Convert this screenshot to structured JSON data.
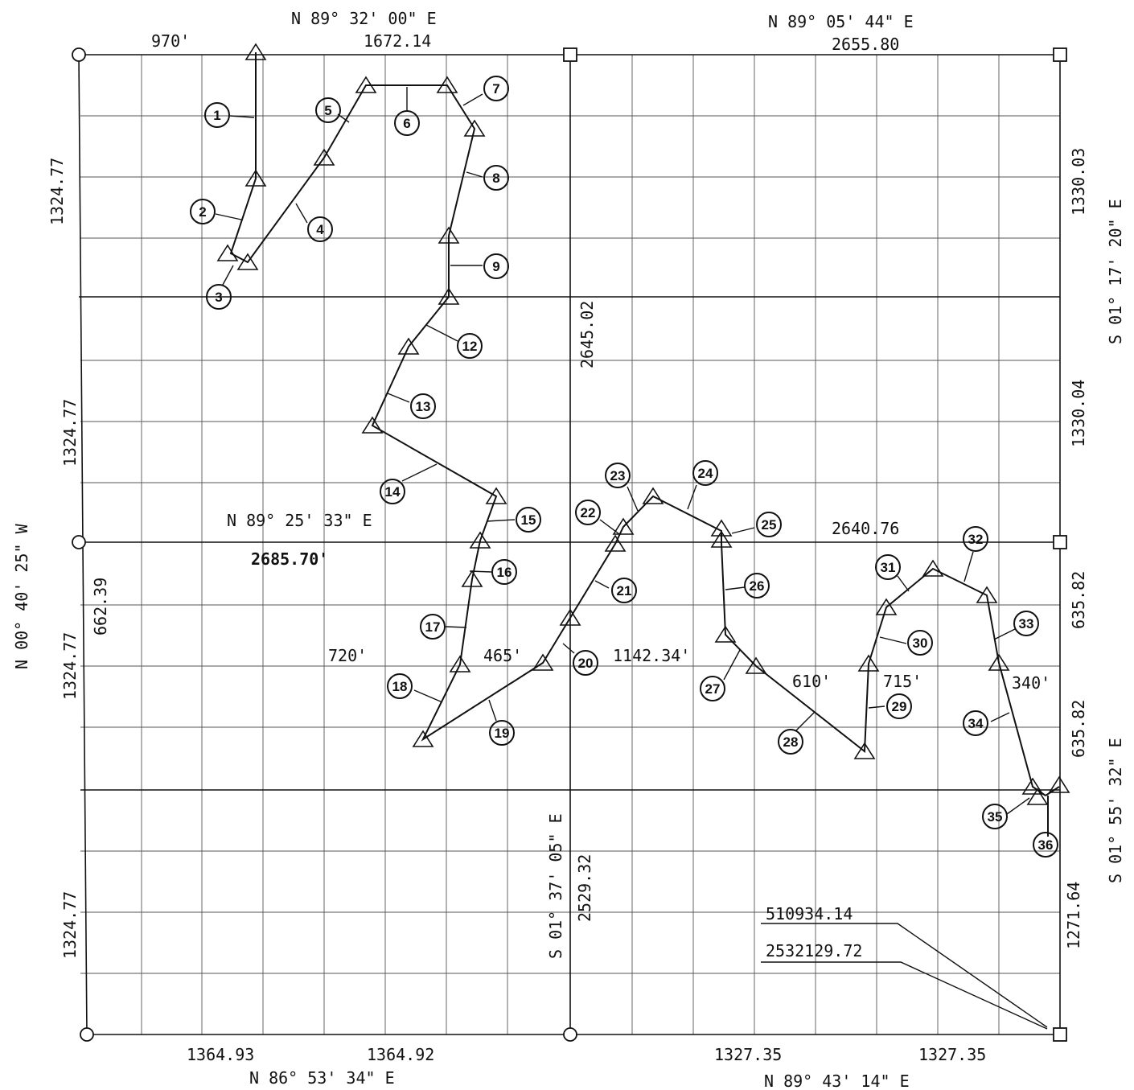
{
  "top_labels": {
    "bearing_left": "N 89° 32' 00\" E",
    "bearing_right": "N 89° 05' 44\" E",
    "dist_970": "970'",
    "dist_1672": "1672.14",
    "dist_2655": "2655.80"
  },
  "bottom_labels": {
    "dist_a": "1364.93",
    "dist_b": "1364.92",
    "dist_c": "1327.35",
    "dist_d": "1327.35",
    "bearing_left": "N 86° 53' 34\" E",
    "bearing_right": "N 89° 43' 14\" E"
  },
  "left_labels": {
    "bearing": "N 00° 40' 25\" W",
    "seg1": "1324.77",
    "seg2": "1324.77",
    "seg3": "1324.77",
    "seg4": "1324.77",
    "dist_662": "662.39"
  },
  "right_labels": {
    "seg1": "1330.03",
    "seg2": "1330.04",
    "seg3": "635.82",
    "seg4": "635.82",
    "seg5": "1271.64",
    "bearing_upper": "S 01° 17' 20\" E",
    "bearing_lower": "S 01° 55' 32\" E"
  },
  "center_labels": {
    "mid_top": "2645.02",
    "mid_bottom": "2529.32",
    "mid_bearing": "S 01° 37' 05\" E",
    "mid_row_bearing": "N 89° 25' 33\" E",
    "mid_row_dist": "2685.70'",
    "mid_row_right": "2640.76",
    "d720": "720'",
    "d465": "465'",
    "d1142": "1142.34'",
    "d610": "610'",
    "d715": "715'",
    "d340": "340'"
  },
  "coordinates": {
    "northing": "510934.14",
    "easting": "2532129.72"
  },
  "stations": [
    "1",
    "2",
    "3",
    "4",
    "5",
    "6",
    "7",
    "8",
    "9",
    "12",
    "13",
    "14",
    "15",
    "16",
    "17",
    "18",
    "19",
    "20",
    "21",
    "22",
    "23",
    "24",
    "25",
    "26",
    "27",
    "28",
    "29",
    "30",
    "31",
    "32",
    "33",
    "34",
    "35",
    "36"
  ]
}
